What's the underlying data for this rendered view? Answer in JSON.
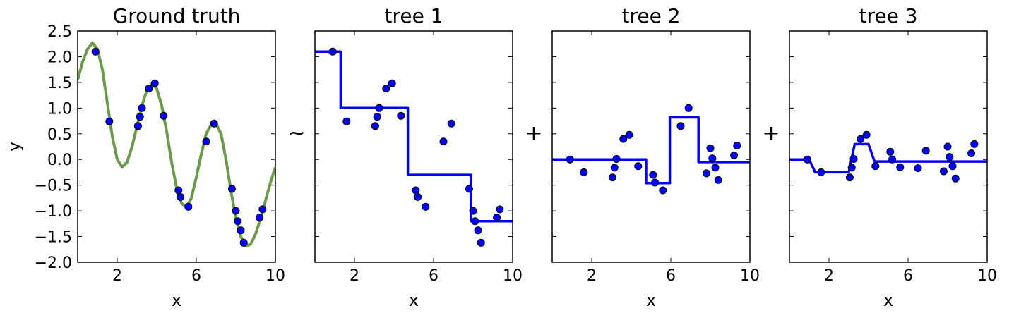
{
  "figure": {
    "operators": [
      "~",
      "+",
      "+"
    ]
  },
  "chart_data": [
    {
      "type": "line",
      "title": "Ground truth",
      "xlabel": "x",
      "ylabel": "y",
      "xlim": [
        0,
        10
      ],
      "ylim": [
        -2.0,
        2.5
      ],
      "xticks": [
        "2",
        "6",
        "10"
      ],
      "yticks": [
        "2.5",
        "2.0",
        "1.5",
        "1.0",
        "0.5",
        "0.0",
        "−0.5",
        "−1.0",
        "−1.5",
        "−2.0"
      ],
      "grid": false,
      "legend": "none",
      "colors": {
        "line": "#6a9a4a",
        "points": "#0000ff"
      },
      "series": [
        {
          "kind": "curve",
          "values": [
            [
              0.0,
              1.55
            ],
            [
              0.25,
              1.9
            ],
            [
              0.5,
              2.15
            ],
            [
              0.75,
              2.27
            ],
            [
              1.0,
              2.15
            ],
            [
              1.25,
              1.75
            ],
            [
              1.5,
              1.1
            ],
            [
              1.75,
              0.45
            ],
            [
              2.0,
              0.0
            ],
            [
              2.25,
              -0.15
            ],
            [
              2.5,
              -0.05
            ],
            [
              2.75,
              0.25
            ],
            [
              3.0,
              0.65
            ],
            [
              3.25,
              1.05
            ],
            [
              3.5,
              1.35
            ],
            [
              3.75,
              1.47
            ],
            [
              4.0,
              1.38
            ],
            [
              4.25,
              1.05
            ],
            [
              4.5,
              0.55
            ],
            [
              4.75,
              -0.05
            ],
            [
              5.0,
              -0.55
            ],
            [
              5.25,
              -0.85
            ],
            [
              5.5,
              -0.93
            ],
            [
              5.75,
              -0.75
            ],
            [
              6.0,
              -0.35
            ],
            [
              6.25,
              0.1
            ],
            [
              6.5,
              0.5
            ],
            [
              6.75,
              0.68
            ],
            [
              7.0,
              0.7
            ],
            [
              7.25,
              0.5
            ],
            [
              7.5,
              0.0
            ],
            [
              7.75,
              -0.6
            ],
            [
              8.0,
              -1.15
            ],
            [
              8.25,
              -1.5
            ],
            [
              8.5,
              -1.68
            ],
            [
              8.75,
              -1.65
            ],
            [
              9.0,
              -1.45
            ],
            [
              9.25,
              -1.15
            ],
            [
              9.5,
              -0.8
            ],
            [
              9.75,
              -0.45
            ],
            [
              10.0,
              -0.15
            ]
          ]
        },
        {
          "kind": "points",
          "values": [
            [
              0.9,
              2.1
            ],
            [
              1.6,
              0.74
            ],
            [
              3.05,
              0.65
            ],
            [
              3.15,
              0.83
            ],
            [
              3.25,
              1.0
            ],
            [
              3.6,
              1.38
            ],
            [
              3.9,
              1.48
            ],
            [
              4.35,
              0.85
            ],
            [
              5.1,
              -0.6
            ],
            [
              5.2,
              -0.73
            ],
            [
              5.6,
              -0.92
            ],
            [
              6.5,
              0.35
            ],
            [
              6.9,
              0.7
            ],
            [
              7.8,
              -0.57
            ],
            [
              8.0,
              -1.0
            ],
            [
              8.1,
              -1.2
            ],
            [
              8.25,
              -1.38
            ],
            [
              8.4,
              -1.62
            ],
            [
              9.2,
              -1.13
            ],
            [
              9.35,
              -0.97
            ]
          ]
        }
      ]
    },
    {
      "type": "line",
      "title": "tree 1",
      "xlabel": "x",
      "ylabel": "",
      "xlim": [
        0,
        10
      ],
      "ylim": [
        -2.0,
        2.5
      ],
      "xticks": [
        "2",
        "6",
        "10"
      ],
      "yticks": [],
      "grid": false,
      "legend": "none",
      "colors": {
        "line": "#0000ff",
        "points": "#0000ff"
      },
      "series": [
        {
          "kind": "step",
          "values": [
            [
              0.0,
              2.1
            ],
            [
              1.3,
              2.1
            ],
            [
              1.3,
              1.0
            ],
            [
              4.7,
              1.0
            ],
            [
              4.7,
              -0.3
            ],
            [
              7.9,
              -0.3
            ],
            [
              7.9,
              -1.2
            ],
            [
              10.0,
              -1.2
            ]
          ]
        },
        {
          "kind": "points",
          "values": [
            [
              0.9,
              2.1
            ],
            [
              1.6,
              0.74
            ],
            [
              3.05,
              0.65
            ],
            [
              3.15,
              0.83
            ],
            [
              3.25,
              1.0
            ],
            [
              3.6,
              1.38
            ],
            [
              3.9,
              1.48
            ],
            [
              4.35,
              0.85
            ],
            [
              5.1,
              -0.6
            ],
            [
              5.2,
              -0.73
            ],
            [
              5.6,
              -0.92
            ],
            [
              6.5,
              0.35
            ],
            [
              6.9,
              0.7
            ],
            [
              7.8,
              -0.57
            ],
            [
              8.0,
              -1.0
            ],
            [
              8.1,
              -1.2
            ],
            [
              8.25,
              -1.38
            ],
            [
              8.4,
              -1.62
            ],
            [
              9.2,
              -1.13
            ],
            [
              9.35,
              -0.97
            ]
          ]
        }
      ]
    },
    {
      "type": "line",
      "title": "tree 2",
      "xlabel": "x",
      "ylabel": "",
      "xlim": [
        0,
        10
      ],
      "ylim": [
        -2.0,
        2.5
      ],
      "xticks": [
        "2",
        "6",
        "10"
      ],
      "yticks": [],
      "grid": false,
      "legend": "none",
      "colors": {
        "line": "#0000ff",
        "points": "#0000ff"
      },
      "series": [
        {
          "kind": "step",
          "values": [
            [
              0.0,
              0.0
            ],
            [
              4.75,
              0.0
            ],
            [
              4.75,
              -0.46
            ],
            [
              5.95,
              -0.46
            ],
            [
              5.95,
              0.82
            ],
            [
              7.4,
              0.82
            ],
            [
              7.4,
              -0.05
            ],
            [
              10.0,
              -0.05
            ]
          ]
        },
        {
          "kind": "points",
          "values": [
            [
              0.9,
              0.0
            ],
            [
              1.6,
              -0.25
            ],
            [
              3.05,
              -0.35
            ],
            [
              3.15,
              -0.16
            ],
            [
              3.25,
              0.01
            ],
            [
              3.6,
              0.4
            ],
            [
              3.9,
              0.48
            ],
            [
              4.35,
              -0.13
            ],
            [
              5.1,
              -0.3
            ],
            [
              5.2,
              -0.45
            ],
            [
              5.6,
              -0.6
            ],
            [
              6.5,
              0.65
            ],
            [
              6.9,
              1.0
            ],
            [
              7.8,
              -0.27
            ],
            [
              8.0,
              0.22
            ],
            [
              8.1,
              0.02
            ],
            [
              8.25,
              -0.16
            ],
            [
              8.4,
              -0.4
            ],
            [
              9.2,
              0.08
            ],
            [
              9.35,
              0.27
            ]
          ]
        }
      ]
    },
    {
      "type": "line",
      "title": "tree 3",
      "xlabel": "x",
      "ylabel": "",
      "xlim": [
        0,
        10
      ],
      "ylim": [
        -2.0,
        2.5
      ],
      "xticks": [
        "2",
        "6",
        "10"
      ],
      "yticks": [],
      "grid": false,
      "legend": "none",
      "colors": {
        "line": "#0000ff",
        "points": "#0000ff"
      },
      "series": [
        {
          "kind": "step",
          "values": [
            [
              0.0,
              0.0
            ],
            [
              1.0,
              0.0
            ],
            [
              1.3,
              -0.25
            ],
            [
              3.0,
              -0.25
            ],
            [
              3.3,
              0.3
            ],
            [
              4.0,
              0.3
            ],
            [
              4.3,
              -0.04
            ],
            [
              10.0,
              -0.04
            ]
          ]
        },
        {
          "kind": "points",
          "values": [
            [
              0.9,
              0.0
            ],
            [
              1.6,
              -0.25
            ],
            [
              3.05,
              -0.35
            ],
            [
              3.15,
              -0.16
            ],
            [
              3.25,
              0.01
            ],
            [
              3.6,
              0.4
            ],
            [
              3.9,
              0.48
            ],
            [
              4.35,
              -0.13
            ],
            [
              5.1,
              0.15
            ],
            [
              5.2,
              0.0
            ],
            [
              5.6,
              -0.15
            ],
            [
              6.5,
              -0.17
            ],
            [
              6.9,
              0.17
            ],
            [
              7.8,
              -0.23
            ],
            [
              8.0,
              0.25
            ],
            [
              8.1,
              0.05
            ],
            [
              8.25,
              -0.13
            ],
            [
              8.4,
              -0.37
            ],
            [
              9.2,
              0.12
            ],
            [
              9.35,
              0.3
            ]
          ]
        }
      ]
    }
  ]
}
